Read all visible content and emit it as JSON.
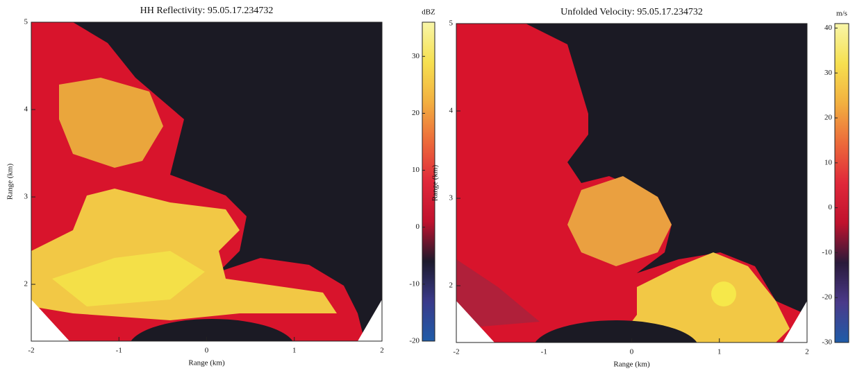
{
  "chart_data": [
    {
      "type": "heatmap",
      "title": "HH Reflectivity: 95.05.17.234732",
      "xlabel": "Range (km)",
      "ylabel": "Range (km)",
      "xlim": [
        -2,
        2
      ],
      "xticks": [
        -2,
        -1,
        0,
        1,
        2
      ],
      "ylim": [
        1.35,
        5
      ],
      "yticks": [
        2,
        3,
        4,
        5
      ],
      "colorbar": {
        "label": "dBZ",
        "lim": [
          -20,
          36
        ],
        "ticks": [
          -20,
          -10,
          0,
          10,
          20,
          30
        ],
        "colormap": [
          "#1f5ca8",
          "#3a3a8a",
          "#1c1a2c",
          "#c0122e",
          "#e0283a",
          "#ec6a3a",
          "#f2b040",
          "#f6e050",
          "#f8f6a8"
        ]
      }
    },
    {
      "type": "heatmap",
      "title": "Unfolded Velocity: 95.05.17.234732",
      "xlabel": "Range (km)",
      "ylabel": "Range (km)",
      "xlim": [
        -2,
        2
      ],
      "xticks": [
        -2,
        -1,
        0,
        1,
        2
      ],
      "ylim": [
        1.35,
        5
      ],
      "yticks": [
        2,
        3,
        4,
        5
      ],
      "colorbar": {
        "label": "m/s",
        "lim": [
          -30,
          41
        ],
        "ticks": [
          -30,
          -20,
          -10,
          0,
          10,
          20,
          30,
          40
        ],
        "colormap": [
          "#1f5ca8",
          "#4a3a8a",
          "#2a1a3a",
          "#c0122e",
          "#e0283a",
          "#ec6a3a",
          "#f2b040",
          "#f6e050",
          "#f8f6a8"
        ]
      }
    }
  ]
}
